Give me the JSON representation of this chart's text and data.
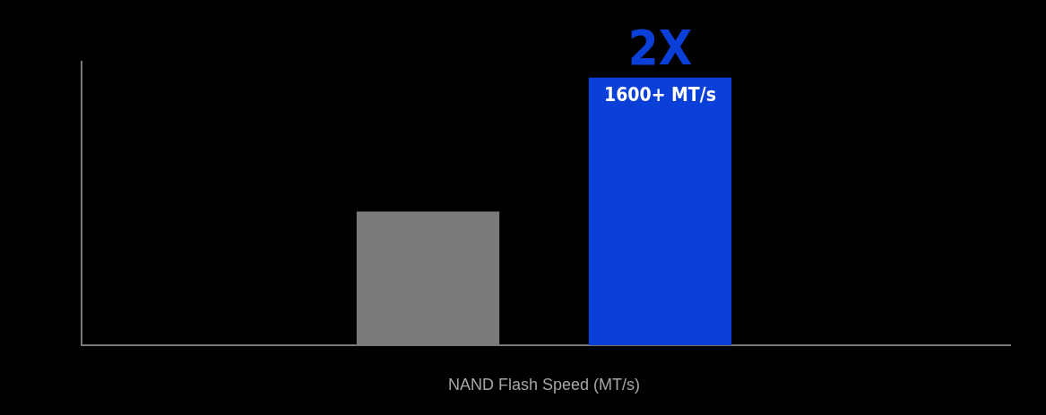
{
  "chart_data": {
    "type": "bar",
    "xlabel": "NAND Flash Speed (MT/s)",
    "categories": [
      null,
      null
    ],
    "values": [
      800,
      1600
    ],
    "colors": [
      "#7a7a7a",
      "#0a3fd8"
    ],
    "value_labels": [
      null,
      "1600+ MT/s"
    ],
    "annotations": [
      "2X"
    ],
    "grid": false,
    "legend": false
  }
}
